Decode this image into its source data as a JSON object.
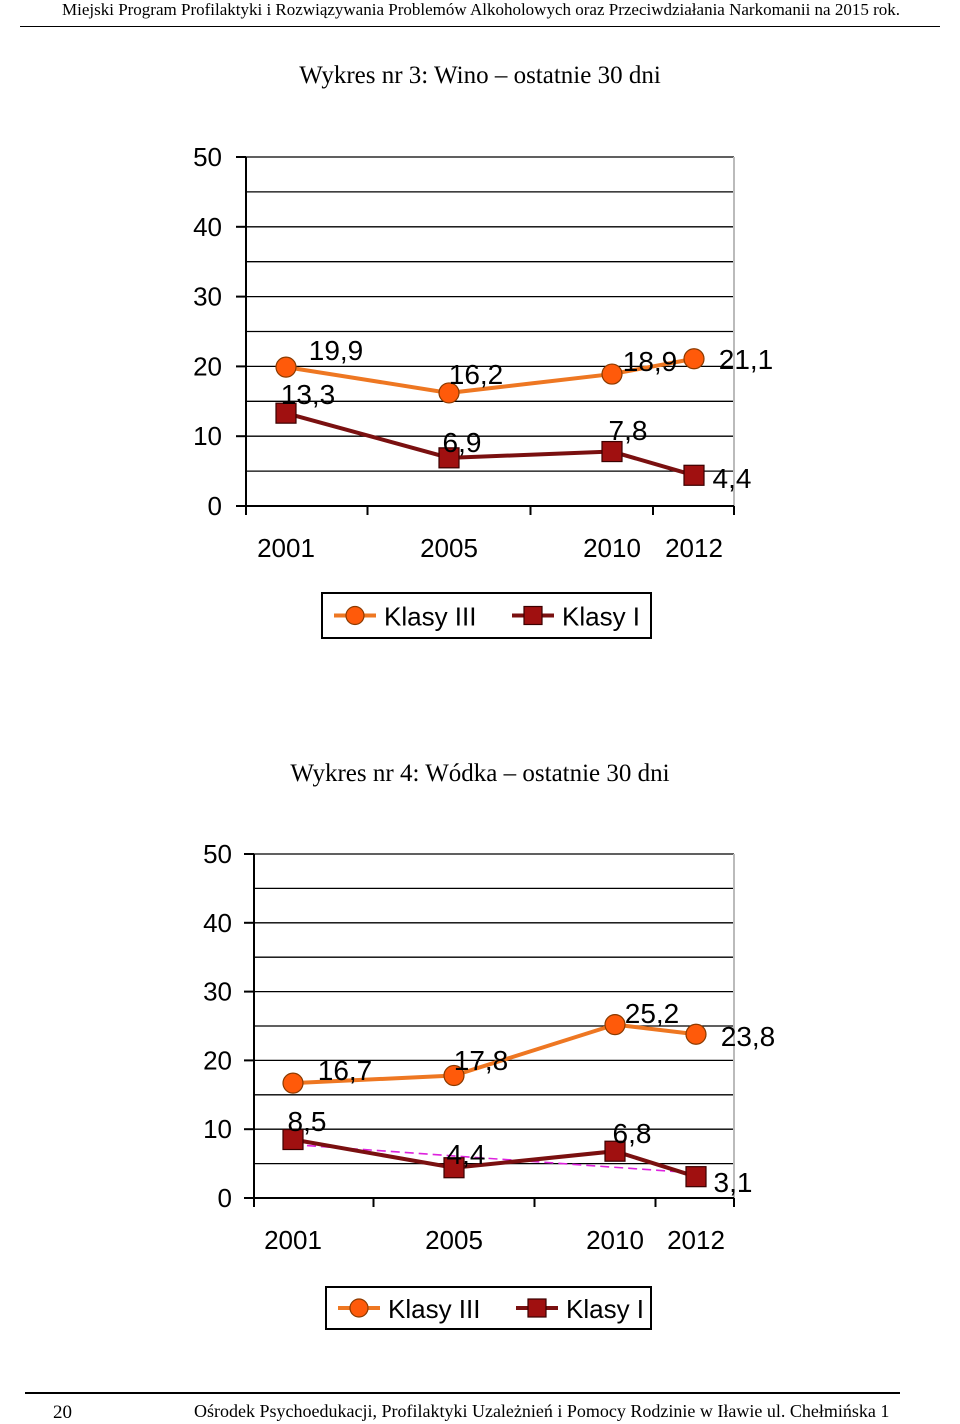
{
  "header": {
    "text": "Miejski Program Profilaktyki i Rozwiązywania Problemów Alkoholowych oraz Przeciwdziałania Narkomanii na 2015 rok."
  },
  "footer": {
    "page_number": "20",
    "text": "Ośrodek Psychoedukacji, Profilaktyki Uzależnień i Pomocy Rodzinie w Iławie ul. Chełmińska 1"
  },
  "colors": {
    "klasy_iii": "#ee7722",
    "klasy_i": "#7a1010",
    "marker_iii": "#ff5a0a",
    "marker_i": "#a01010",
    "trend": "#dd22dd",
    "grid": "#000000"
  },
  "chart_data": [
    {
      "type": "line",
      "title": "Wykres nr 3: Wino – ostatnie 30 dni",
      "categories": [
        "2001",
        "2005",
        "2010",
        "2012"
      ],
      "y_ticks": [
        "0",
        "10",
        "20",
        "30",
        "40",
        "50"
      ],
      "ylim": [
        0,
        50
      ],
      "grid": true,
      "legend_position": "bottom",
      "series": [
        {
          "name": "Klasy III",
          "values": [
            19.9,
            16.2,
            18.9,
            21.1
          ],
          "labels": [
            "19,9",
            "16,2",
            "18,9",
            "21,1"
          ]
        },
        {
          "name": "Klasy I",
          "values": [
            13.3,
            6.9,
            7.8,
            4.4
          ],
          "labels": [
            "13,3",
            "6,9",
            "7,8",
            "4,4"
          ]
        }
      ]
    },
    {
      "type": "line",
      "title": "Wykres nr 4: Wódka – ostatnie 30 dni",
      "categories": [
        "2001",
        "2005",
        "2010",
        "2012"
      ],
      "y_ticks": [
        "0",
        "10",
        "20",
        "30",
        "40",
        "50"
      ],
      "ylim": [
        0,
        50
      ],
      "grid": true,
      "legend_position": "bottom",
      "trendline_on": "Klasy I",
      "series": [
        {
          "name": "Klasy III",
          "values": [
            16.7,
            17.8,
            25.2,
            23.8
          ],
          "labels": [
            "16,7",
            "17,8",
            "25,2",
            "23,8"
          ]
        },
        {
          "name": "Klasy I",
          "values": [
            8.5,
            4.4,
            6.8,
            3.1
          ],
          "labels": [
            "8,5",
            "4,4",
            "6,8",
            "3,1"
          ]
        }
      ]
    }
  ]
}
